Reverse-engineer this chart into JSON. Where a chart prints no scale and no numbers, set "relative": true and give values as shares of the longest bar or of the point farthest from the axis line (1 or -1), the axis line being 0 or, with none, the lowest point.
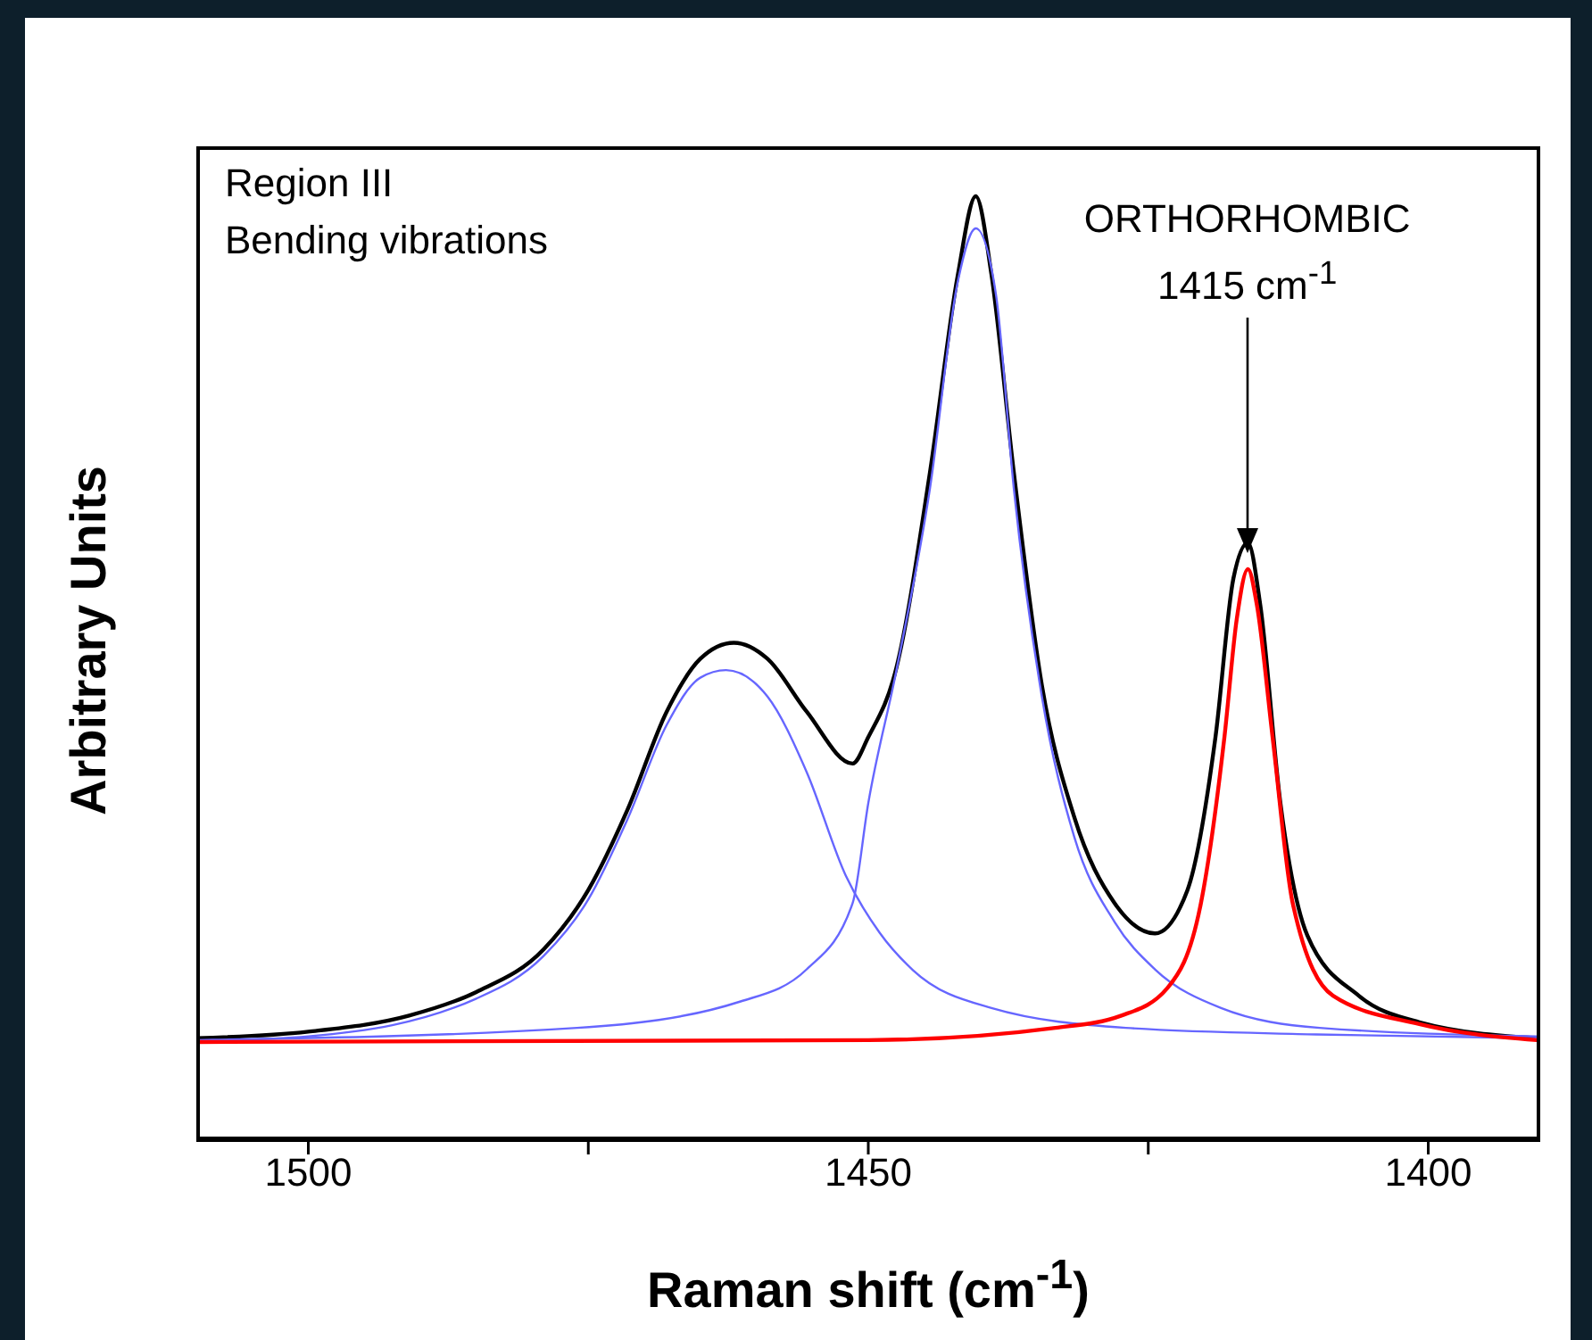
{
  "chart_data": {
    "type": "line",
    "relative": true,
    "xlabel": "Raman shift (cm$^{-1}$)",
    "ylabel": "Arbitrary Units",
    "xlim": [
      1510,
      1390
    ],
    "xticks": [
      1500,
      {
        "value": 1475,
        "label": null
      },
      1450,
      {
        "value": 1425,
        "label": null
      },
      1400
    ],
    "grid": false,
    "legend": false,
    "marker": "none",
    "line_style": "solid",
    "annotations": [
      "Region III",
      "Bending vibrations",
      "ORTHORHOMBIC",
      "1415 cm$^{-1}$"
    ],
    "series": [
      {
        "color": "#000000",
        "x": [
          1510,
          1500,
          1491,
          1485,
          1479,
          1475,
          1471.5,
          1468,
          1465,
          1462,
          1459,
          1455.5,
          1451.4,
          1450,
          1447.5,
          1444.5,
          1442,
          1440.4,
          1439,
          1437,
          1434.5,
          1431.6,
          1428,
          1424.4,
          1421.5,
          1419,
          1417.4,
          1416.1,
          1415,
          1413.2,
          1410.8,
          1406.2,
          1400.8,
          1390.3
        ],
        "values": [
          0.108,
          0.115,
          0.132,
          0.157,
          0.202,
          0.265,
          0.35,
          0.454,
          0.51,
          0.527,
          0.51,
          0.454,
          0.399,
          0.427,
          0.5,
          0.707,
          0.917,
          1.0,
          0.917,
          0.707,
          0.482,
          0.342,
          0.251,
          0.219,
          0.265,
          0.427,
          0.595,
          0.633,
          0.567,
          0.357,
          0.217,
          0.153,
          0.125,
          0.108
        ]
      },
      {
        "color": "#6666ff",
        "x": [
          1510,
          1500,
          1485,
          1479,
          1475,
          1471.5,
          1468,
          1465,
          1462.7,
          1459,
          1455.5,
          1452,
          1449,
          1446,
          1439,
          1427,
          1410,
          1390.3
        ],
        "values": [
          0.105,
          0.11,
          0.15,
          0.195,
          0.255,
          0.34,
          0.44,
          0.49,
          0.498,
          0.47,
          0.39,
          0.28,
          0.22,
          0.18,
          0.14,
          0.119,
          0.112,
          0.108
        ]
      },
      {
        "color": "#6666ff",
        "x": [
          1510,
          1476,
          1461.4,
          1455.5,
          1451.4,
          1450,
          1447.5,
          1444.5,
          1442,
          1440.4,
          1438.6,
          1437,
          1434.5,
          1431.6,
          1428,
          1424.4,
          1418.5,
          1409.7,
          1390.3
        ],
        "values": [
          0.106,
          0.119,
          0.147,
          0.181,
          0.251,
          0.357,
          0.497,
          0.69,
          0.91,
          0.966,
          0.896,
          0.69,
          0.47,
          0.321,
          0.231,
          0.181,
          0.14,
          0.119,
          0.11
        ]
      },
      {
        "color": "#ff0000",
        "x": [
          1510,
          1450,
          1433.3,
          1427.4,
          1423.3,
          1420.3,
          1418.2,
          1417.1,
          1416.1,
          1415.3,
          1413.9,
          1412.1,
          1408.5,
          1400.8,
          1390.3
        ],
        "values": [
          0.104,
          0.106,
          0.119,
          0.132,
          0.161,
          0.251,
          0.427,
          0.552,
          0.605,
          0.567,
          0.427,
          0.251,
          0.153,
          0.123,
          0.106
        ]
      }
    ]
  }
}
